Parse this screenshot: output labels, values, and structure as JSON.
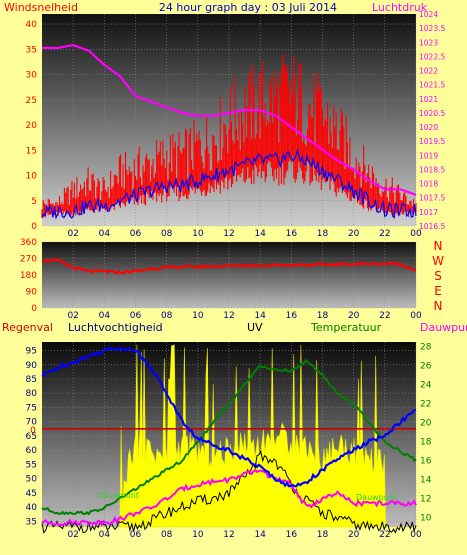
{
  "header": {
    "left_label": "Windsnelheid",
    "title": "24 hour graph day : 03 Juli 2014",
    "right_label": "Luchtdruk"
  },
  "colors": {
    "page_bg": "#ffff99",
    "wind": "#ff0000",
    "wind_avg": "#0000ff",
    "pressure": "#ff00ff",
    "humidity": "#0000ff",
    "uv": "#ffff00",
    "temperature": "#008000",
    "dewpoint": "#ff00ff",
    "rain_line": "#cc0000",
    "solar": "#000000"
  },
  "chart_data": [
    {
      "type": "line",
      "name": "wind-pressure",
      "title": "24 hour graph day : 03 Juli 2014",
      "x_ticks": [
        "02",
        "04",
        "06",
        "08",
        "10",
        "12",
        "14",
        "16",
        "18",
        "20",
        "22",
        "00"
      ],
      "xlim": [
        0,
        24
      ],
      "left_axis": {
        "label": "Windsnelheid",
        "ticks": [
          0,
          5,
          10,
          15,
          20,
          25,
          30,
          35,
          40
        ],
        "range": [
          0,
          42
        ]
      },
      "right_axis": {
        "label": "Luchtdruk",
        "ticks": [
          "1016.5",
          "1017",
          "1017.5",
          "1018",
          "1018.5",
          "1019",
          "1019.5",
          "1020",
          "1020.5",
          "1021",
          "1021.5",
          "1022",
          "1022.5",
          "1023",
          "1023.5",
          "1024"
        ],
        "range": [
          1016.5,
          1024
        ]
      },
      "series": [
        {
          "key": "gust",
          "axis": "left",
          "style": "bars",
          "x": [
            0,
            1,
            2,
            3,
            4,
            5,
            6,
            7,
            8,
            9,
            10,
            11,
            12,
            13,
            14,
            15,
            16,
            17,
            18,
            19,
            20,
            21,
            22,
            23,
            24
          ],
          "y": [
            5,
            5,
            8,
            10,
            8,
            12,
            13,
            14,
            16,
            16,
            18,
            20,
            24,
            26,
            28,
            29,
            30,
            27,
            25,
            21,
            16,
            12,
            9,
            7,
            5
          ]
        },
        {
          "key": "average",
          "axis": "left",
          "x": [
            0,
            1,
            2,
            3,
            4,
            5,
            6,
            7,
            8,
            9,
            10,
            11,
            12,
            13,
            14,
            15,
            16,
            17,
            18,
            19,
            20,
            21,
            22,
            23,
            24
          ],
          "y": [
            2.5,
            3,
            3,
            4,
            4,
            5,
            6,
            7,
            8,
            8,
            9,
            10,
            11,
            12,
            13,
            13,
            14,
            13,
            11,
            9,
            7,
            5,
            3,
            3,
            3
          ]
        },
        {
          "key": "pressure",
          "axis": "right",
          "x": [
            0,
            1,
            2,
            3,
            4,
            5,
            6,
            7,
            8,
            9,
            10,
            11,
            12,
            13,
            14,
            15,
            16,
            17,
            18,
            19,
            20,
            21,
            22,
            23,
            24
          ],
          "y": [
            1022.8,
            1022.8,
            1022.9,
            1022.7,
            1022.2,
            1021.8,
            1021.1,
            1020.9,
            1020.7,
            1020.5,
            1020.4,
            1020.4,
            1020.5,
            1020.6,
            1020.6,
            1020.4,
            1020.0,
            1019.6,
            1019.2,
            1018.8,
            1018.5,
            1018.1,
            1017.8,
            1017.8,
            1017.6
          ]
        }
      ]
    },
    {
      "type": "line",
      "name": "wind-direction",
      "x_ticks": [
        "02",
        "04",
        "06",
        "08",
        "10",
        "12",
        "14",
        "16",
        "18",
        "20",
        "22",
        "00"
      ],
      "xlim": [
        0,
        24
      ],
      "left_axis": {
        "ticks": [
          0,
          90,
          180,
          270,
          360
        ],
        "range": [
          0,
          360
        ]
      },
      "right_labels": [
        "N",
        "W",
        "S",
        "E",
        "N"
      ],
      "series": [
        {
          "key": "direction",
          "x": [
            0,
            1,
            2,
            3,
            4,
            5,
            6,
            7,
            8,
            9,
            10,
            11,
            12,
            13,
            14,
            15,
            16,
            17,
            18,
            19,
            20,
            21,
            22,
            23,
            24
          ],
          "y": [
            260,
            260,
            220,
            200,
            200,
            195,
            200,
            215,
            220,
            225,
            225,
            228,
            230,
            232,
            232,
            234,
            235,
            236,
            236,
            238,
            240,
            240,
            242,
            240,
            205
          ]
        }
      ]
    },
    {
      "type": "line",
      "name": "humidity-uv-temperature",
      "labels": {
        "rain": "Regenval",
        "humidity": "Luchtvochtigheid",
        "uv": "UV",
        "temperature": "Temperatuur",
        "dewpoint": "Dauwpunt"
      },
      "x_ticks": [
        "02",
        "04",
        "06",
        "08",
        "10",
        "12",
        "14",
        "16",
        "18",
        "20",
        "22",
        "00"
      ],
      "xlim": [
        0,
        24
      ],
      "left_axis": {
        "ticks": [
          35,
          40,
          45,
          50,
          55,
          60,
          65,
          70,
          75,
          80,
          85,
          90,
          95
        ],
        "range": [
          33,
          98
        ]
      },
      "rain_value_label": "0",
      "right_axis": {
        "ticks": [
          10,
          12,
          14,
          16,
          18,
          20,
          22,
          24,
          26,
          28
        ],
        "range": [
          9,
          28.5
        ]
      },
      "series": [
        {
          "key": "humidity",
          "axis": "left",
          "x": [
            0,
            1,
            2,
            3,
            4,
            5,
            6,
            7,
            8,
            9,
            10,
            11,
            12,
            13,
            14,
            15,
            16,
            17,
            18,
            19,
            20,
            21,
            22,
            23,
            24
          ],
          "y": [
            86,
            89,
            91,
            93,
            95,
            96,
            95,
            89,
            80,
            70,
            64,
            62,
            60,
            57,
            54,
            50,
            47,
            49,
            53,
            57,
            60,
            63,
            65,
            70,
            74
          ]
        },
        {
          "key": "uv",
          "axis": "left",
          "style": "area",
          "x": [
            0,
            5,
            5.5,
            6,
            7,
            8,
            9,
            10,
            11,
            12,
            13,
            14,
            15,
            16,
            17,
            18,
            19,
            20,
            21,
            22,
            22.01,
            24
          ],
          "y": [
            33,
            33,
            55,
            62,
            60,
            57,
            62,
            60,
            58,
            60,
            63,
            62,
            66,
            63,
            62,
            57,
            62,
            60,
            57,
            55,
            33,
            33
          ]
        },
        {
          "key": "temperature",
          "axis": "right",
          "x": [
            0,
            1,
            2,
            3,
            4,
            5,
            6,
            7,
            8,
            9,
            10,
            11,
            12,
            13,
            14,
            15,
            16,
            17,
            18,
            19,
            20,
            21,
            22,
            23,
            24
          ],
          "y": [
            11,
            10.5,
            10.5,
            10.5,
            11,
            12,
            13,
            14,
            15,
            16,
            18,
            20,
            22,
            24,
            26,
            25.5,
            25.5,
            26.5,
            25,
            23,
            22,
            20,
            18,
            17,
            16
          ]
        },
        {
          "key": "dewpoint",
          "axis": "right",
          "x": [
            0,
            1,
            2,
            3,
            4,
            5,
            6,
            7,
            8,
            9,
            10,
            11,
            12,
            13,
            14,
            15,
            16,
            17,
            18,
            19,
            20,
            21,
            22,
            23,
            24
          ],
          "y": [
            9.5,
            9.4,
            9.5,
            9.5,
            9.5,
            9.8,
            10.5,
            11,
            12,
            13,
            13.5,
            13.8,
            14,
            14.5,
            15,
            14,
            13.5,
            11,
            12,
            12.5,
            11.5,
            11.5,
            11.5,
            11.5,
            11.5
          ]
        },
        {
          "key": "solar",
          "axis": "left",
          "x": [
            0,
            6,
            7,
            8,
            9,
            10,
            11,
            12,
            13,
            14,
            15,
            16,
            17,
            18,
            19,
            20,
            21,
            22,
            24
          ],
          "y": [
            33,
            33,
            35,
            38,
            40,
            42,
            43,
            45,
            50,
            58,
            56,
            48,
            42,
            38,
            36,
            34,
            33,
            33,
            33
          ]
        }
      ],
      "annotations": [
        "Dauwpunt",
        "Dauwpunt"
      ]
    }
  ]
}
